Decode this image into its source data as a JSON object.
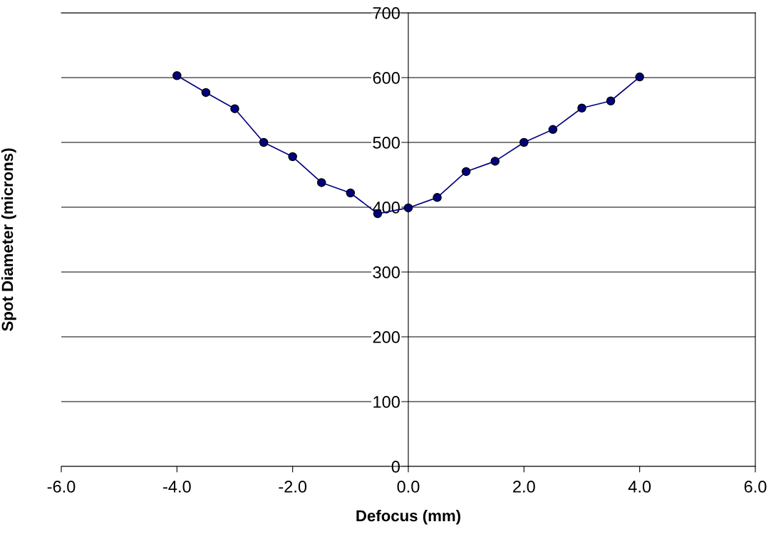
{
  "chart_data": {
    "type": "line",
    "xlabel": "Defocus (mm)",
    "ylabel": "Spot Diameter (microns)",
    "x": [
      -4.0,
      -3.5,
      -3.0,
      -2.5,
      -2.0,
      -1.5,
      -1.0,
      -0.53,
      0.0,
      0.5,
      1.0,
      1.5,
      2.0,
      2.5,
      3.0,
      3.5,
      4.0
    ],
    "series": [
      {
        "color": "#000080",
        "values": [
          603,
          577,
          552,
          500,
          478,
          438,
          422,
          390,
          399,
          415,
          455,
          471,
          500,
          520,
          553,
          564,
          601
        ]
      }
    ],
    "xlim": [
      -6,
      6
    ],
    "ylim": [
      0,
      700
    ],
    "xticks": [
      {
        "value": -6,
        "label": "-6.0"
      },
      {
        "value": -4,
        "label": "-4.0"
      },
      {
        "value": -2,
        "label": "-2.0"
      },
      {
        "value": 0,
        "label": "0.0"
      },
      {
        "value": 2,
        "label": "2.0"
      },
      {
        "value": 4,
        "label": "4.0"
      },
      {
        "value": 6,
        "label": "6.0"
      }
    ],
    "yticks": [
      0,
      100,
      200,
      300,
      400,
      500,
      600,
      700
    ],
    "grid": "y",
    "marker": "circle",
    "line_style": "solid"
  }
}
